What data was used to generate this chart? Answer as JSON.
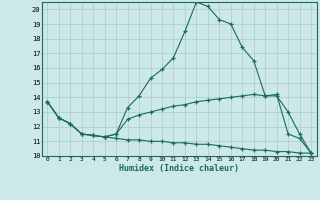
{
  "title": "",
  "xlabel": "Humidex (Indice chaleur)",
  "x": [
    0,
    1,
    2,
    3,
    4,
    5,
    6,
    7,
    8,
    9,
    10,
    11,
    12,
    13,
    14,
    15,
    16,
    17,
    18,
    19,
    20,
    21,
    22,
    23
  ],
  "line_max": [
    13.7,
    12.6,
    12.2,
    11.5,
    11.4,
    11.3,
    11.5,
    13.3,
    14.1,
    15.3,
    15.9,
    16.7,
    18.5,
    20.5,
    20.2,
    19.3,
    19.0,
    17.4,
    16.5,
    14.1,
    14.2,
    11.5,
    11.2,
    10.2
  ],
  "line_avg": [
    13.7,
    12.6,
    12.2,
    11.5,
    11.4,
    11.3,
    11.5,
    12.5,
    12.8,
    13.0,
    13.2,
    13.4,
    13.5,
    13.7,
    13.8,
    13.9,
    14.0,
    14.1,
    14.2,
    14.1,
    14.1,
    13.0,
    11.5,
    10.2
  ],
  "line_min": [
    13.7,
    12.6,
    12.2,
    11.5,
    11.4,
    11.3,
    11.2,
    11.1,
    11.1,
    11.0,
    11.0,
    10.9,
    10.9,
    10.8,
    10.8,
    10.7,
    10.6,
    10.5,
    10.4,
    10.4,
    10.3,
    10.3,
    10.2,
    10.2
  ],
  "ylim": [
    10,
    20.5
  ],
  "xlim": [
    -0.5,
    23.5
  ],
  "yticks": [
    10,
    11,
    12,
    13,
    14,
    15,
    16,
    17,
    18,
    19,
    20
  ],
  "line_color": "#1a6b5a",
  "bg_color": "#cce8e8",
  "grid_color": "#aacccc"
}
